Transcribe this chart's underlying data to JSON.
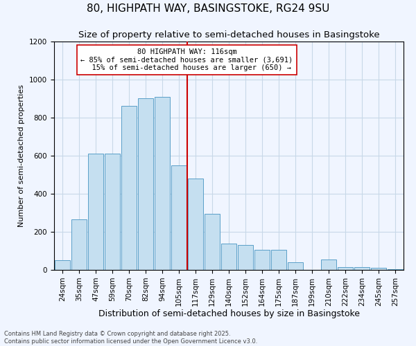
{
  "title": "80, HIGHPATH WAY, BASINGSTOKE, RG24 9SU",
  "subtitle": "Size of property relative to semi-detached houses in Basingstoke",
  "xlabel": "Distribution of semi-detached houses by size in Basingstoke",
  "ylabel": "Number of semi-detached properties",
  "categories": [
    "24sqm",
    "35sqm",
    "47sqm",
    "59sqm",
    "70sqm",
    "82sqm",
    "94sqm",
    "105sqm",
    "117sqm",
    "129sqm",
    "140sqm",
    "152sqm",
    "164sqm",
    "175sqm",
    "187sqm",
    "199sqm",
    "210sqm",
    "222sqm",
    "234sqm",
    "245sqm",
    "257sqm"
  ],
  "values": [
    50,
    265,
    610,
    610,
    860,
    900,
    910,
    550,
    480,
    295,
    140,
    130,
    105,
    105,
    40,
    0,
    55,
    15,
    15,
    10,
    5
  ],
  "bar_color": "#c5dff0",
  "bar_edge_color": "#5a9fc8",
  "vline_color": "#cc0000",
  "vline_bin": 8,
  "property_label": "80 HIGHPATH WAY: 116sqm",
  "pct_smaller": 85,
  "count_smaller": 3691,
  "pct_larger": 15,
  "count_larger": 650,
  "ylim": [
    0,
    1200
  ],
  "yticks": [
    0,
    200,
    400,
    600,
    800,
    1000,
    1200
  ],
  "title_fontsize": 11,
  "subtitle_fontsize": 9.5,
  "xlabel_fontsize": 9,
  "ylabel_fontsize": 8,
  "tick_fontsize": 7.5,
  "annot_fontsize": 7.5,
  "footnote_fontsize": 6,
  "background_color": "#f0f5ff",
  "grid_color": "#c8d8e8",
  "footnote": "Contains HM Land Registry data © Crown copyright and database right 2025.\nContains public sector information licensed under the Open Government Licence v3.0."
}
